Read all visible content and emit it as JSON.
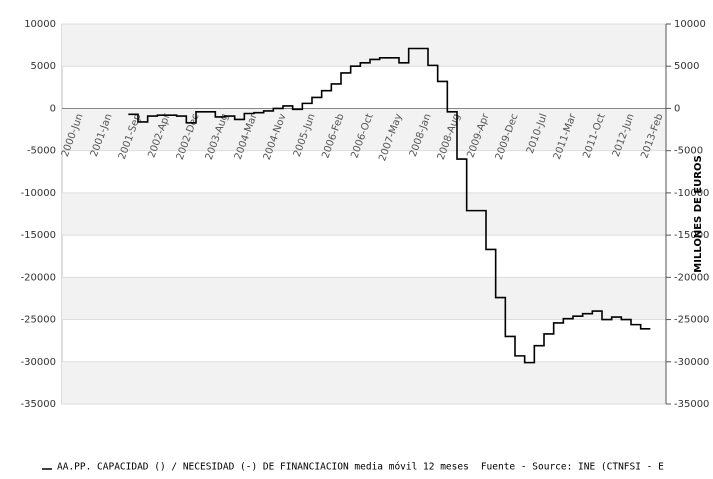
{
  "chart_data": {
    "type": "line",
    "y_axis_label": "MILLONES DE EUROS",
    "source": "Fuente - Source: INE (CTNFSI - E",
    "categories": [
      "2000-Jun",
      null,
      null,
      "2001-Jan",
      null,
      null,
      "2001-Sep",
      null,
      null,
      "2002-Apr",
      null,
      null,
      "2002-Dec",
      null,
      null,
      "2003-Aug",
      null,
      null,
      "2004-Mar",
      null,
      null,
      "2004-Nov",
      null,
      null,
      "2005-Jun",
      null,
      null,
      "2006-Feb",
      null,
      null,
      "2006-Oct",
      null,
      null,
      "2007-May",
      null,
      null,
      "2008-Jan",
      null,
      null,
      "2008-Aug",
      null,
      null,
      "2009-Apr",
      null,
      null,
      "2009-Dec",
      null,
      null,
      "2010-Jul",
      null,
      null,
      "2011-Mar",
      null,
      null,
      "2011-Oct",
      null,
      null,
      "2012-Jun",
      null,
      null,
      "2013-Feb"
    ],
    "series": [
      {
        "name": "AA.PP. CAPACIDAD () / NECESIDAD (-) DE FINANCIACION media móvil 12 meses",
        "color": "#000000",
        "values": [
          null,
          null,
          null,
          null,
          null,
          -700,
          -1600,
          -900,
          -800,
          -800,
          -900,
          -1700,
          -400,
          -400,
          -1000,
          -900,
          -1300,
          -600,
          -500,
          -300,
          0,
          300,
          -100,
          600,
          1300,
          2100,
          2900,
          4200,
          5000,
          5400,
          5800,
          6000,
          6000,
          5400,
          7100,
          7100,
          5100,
          3200,
          -400,
          -6000,
          -12100,
          -12100,
          -16700,
          -22400,
          -27000,
          -29300,
          -30100,
          -28100,
          -26700,
          -25400,
          -24900,
          -24600,
          -24300,
          -24000,
          -25000,
          -24700,
          -25000,
          -25600,
          -26100,
          -26100,
          null
        ]
      }
    ],
    "ylim": [
      -35000,
      10000
    ],
    "yticks": [
      -35000,
      -30000,
      -25000,
      -20000,
      -15000,
      -10000,
      -5000,
      0,
      5000,
      10000
    ],
    "bands": true
  }
}
